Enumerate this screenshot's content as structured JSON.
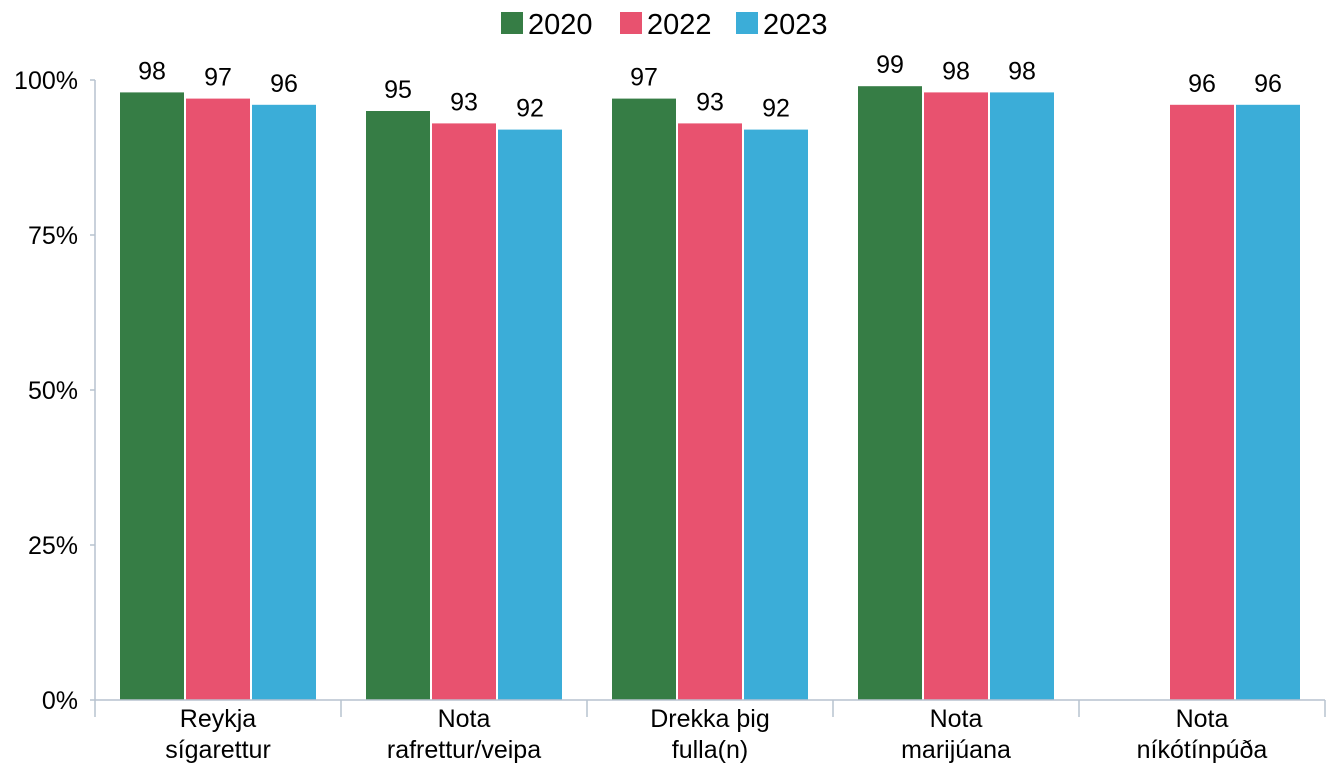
{
  "chart_data": {
    "type": "bar",
    "categories": [
      [
        "Reykja",
        "sígarettur"
      ],
      [
        "Nota",
        "rafrettur/veipa"
      ],
      [
        "Drekka þig",
        "fulla(n)"
      ],
      [
        "Nota",
        "marijúana"
      ],
      [
        "Nota",
        "níkótínpúða"
      ]
    ],
    "series": [
      {
        "name": "2020",
        "color": "#367d45",
        "values": [
          98,
          95,
          97,
          99,
          null
        ]
      },
      {
        "name": "2022",
        "color": "#e8526f",
        "values": [
          97,
          93,
          93,
          98,
          96
        ]
      },
      {
        "name": "2023",
        "color": "#3badd8",
        "values": [
          96,
          92,
          92,
          98,
          96
        ]
      }
    ],
    "data_labels": [
      [
        "98",
        "97",
        "96"
      ],
      [
        "95",
        "93",
        "92"
      ],
      [
        "97",
        "93",
        "92"
      ],
      [
        "99",
        "98",
        "98"
      ],
      [
        null,
        "96",
        "96"
      ]
    ],
    "ylim": [
      0,
      100
    ],
    "yticks": [
      0,
      25,
      50,
      75,
      100
    ],
    "ytick_labels": [
      "0%",
      "25%",
      "50%",
      "75%",
      "100%"
    ],
    "legend_position": "top-center",
    "grid": false,
    "axis_color": "#b7c2cf"
  }
}
